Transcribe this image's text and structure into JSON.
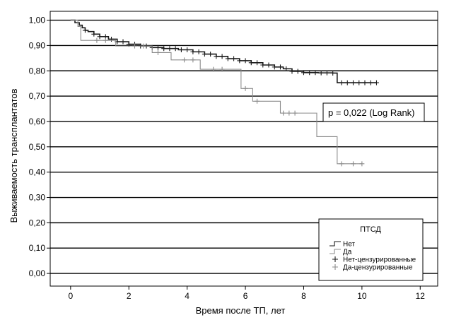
{
  "chart_data": {
    "type": "line",
    "title": "",
    "xlabel": "Время после ТП, лет",
    "ylabel": "Выживаемость трансплантатов",
    "xlim": [
      -0.7,
      12.6
    ],
    "ylim": [
      -0.05,
      1.035
    ],
    "x_ticks": [
      0,
      2,
      4,
      6,
      8,
      10,
      12
    ],
    "x_tick_labels": [
      "0",
      "2",
      "4",
      "6",
      "8",
      "10",
      "12"
    ],
    "y_ticks": [
      0.0,
      0.1,
      0.2,
      0.3,
      0.4,
      0.5,
      0.6,
      0.7,
      0.8,
      0.9,
      1.0
    ],
    "y_tick_labels": [
      "0,00",
      "0,10",
      "0,20",
      "0,30",
      "0,40",
      "0,50",
      "0,60",
      "0,70",
      "0,80",
      "0,90",
      "1,00"
    ],
    "grid": "horizontal",
    "annotation": "p = 0,022 (Log Rank)",
    "legend": {
      "title": "ПТСД",
      "placement": "bottom-right",
      "entries": [
        "Нет",
        "Да",
        "Нет-цензурированные",
        "Да-цензурированные"
      ]
    },
    "series": [
      {
        "name": "Нет",
        "color": "#1a1a1a",
        "x": [
          0,
          0.15,
          0.3,
          0.4,
          0.5,
          0.6,
          0.8,
          1.0,
          1.3,
          1.6,
          2.0,
          2.4,
          2.8,
          3.2,
          3.7,
          4.2,
          4.6,
          5.0,
          5.4,
          5.8,
          6.2,
          6.6,
          7.0,
          7.3,
          7.6,
          8.0,
          8.5,
          9.0,
          9.15,
          10.5
        ],
        "y": [
          1.0,
          0.99,
          0.98,
          0.97,
          0.96,
          0.955,
          0.945,
          0.935,
          0.925,
          0.915,
          0.905,
          0.898,
          0.892,
          0.888,
          0.883,
          0.875,
          0.866,
          0.857,
          0.848,
          0.84,
          0.832,
          0.823,
          0.815,
          0.808,
          0.798,
          0.793,
          0.792,
          0.791,
          0.753,
          0.753
        ],
        "censor_x": [
          0.5,
          0.8,
          1.0,
          1.2,
          1.4,
          1.6,
          1.8,
          2.0,
          2.2,
          2.4,
          2.6,
          2.8,
          3.0,
          3.2,
          3.4,
          3.6,
          3.8,
          4.0,
          4.2,
          4.4,
          4.6,
          4.8,
          5.0,
          5.2,
          5.4,
          5.6,
          5.8,
          6.0,
          6.2,
          6.4,
          6.6,
          6.8,
          7.0,
          7.2,
          7.4,
          7.6,
          7.8,
          8.0,
          8.2,
          8.4,
          8.6,
          8.8,
          9.0,
          9.3,
          9.5,
          9.7,
          9.9,
          10.1,
          10.3,
          10.5
        ]
      },
      {
        "name": "Да",
        "color": "#8c8c8c",
        "x": [
          0,
          0.25,
          0.35,
          1.55,
          2.8,
          3.45,
          4.45,
          5.85,
          6.25,
          7.2,
          8.45,
          9.15,
          10.0
        ],
        "y": [
          1.0,
          0.975,
          0.92,
          0.898,
          0.872,
          0.843,
          0.806,
          0.73,
          0.68,
          0.633,
          0.54,
          0.433,
          0.433
        ],
        "censor_x": [
          0.9,
          1.2,
          2.2,
          2.5,
          3.0,
          3.9,
          4.2,
          4.9,
          5.2,
          6.0,
          6.4,
          7.3,
          7.5,
          7.7,
          9.3,
          9.7,
          10.0
        ]
      }
    ]
  }
}
